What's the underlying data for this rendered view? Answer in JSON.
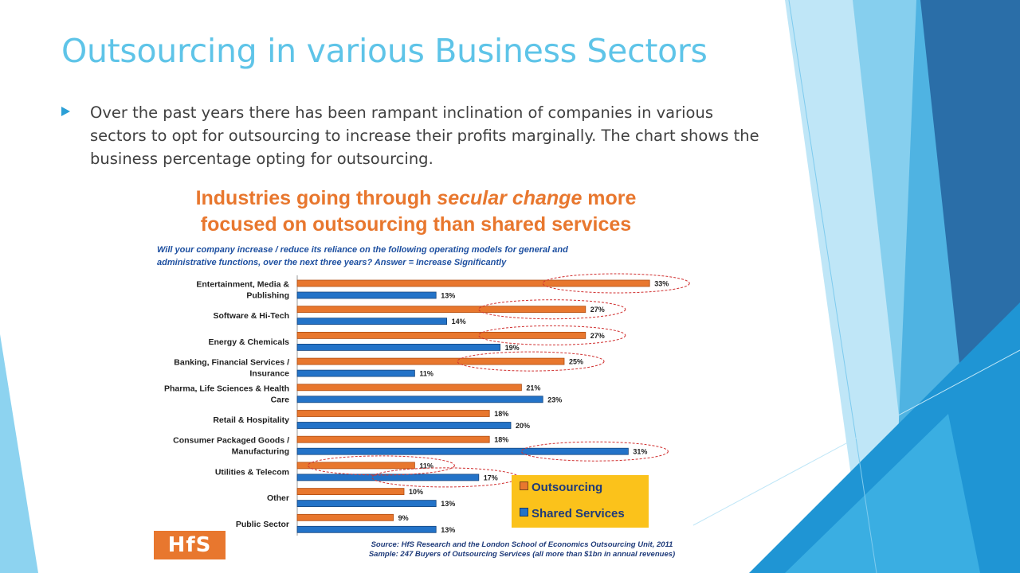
{
  "slide": {
    "title": "Outsourcing in various Business Sectors",
    "bullet": "Over the past years there has been rampant inclination of companies in various sectors to opt for outsourcing to increase their profits marginally. The chart shows the business percentage opting for outsourcing."
  },
  "colors": {
    "accent_light": "#5ec4e8",
    "accent_dark": "#2a6ea8",
    "outsourcing_bar": "#e8772e",
    "shared_services_bar": "#2373c8",
    "legend_background": "#fbc21b"
  },
  "chart_data": {
    "type": "bar",
    "orientation": "horizontal",
    "title_parts": {
      "line1_before": "Industries going through ",
      "line1_emphasis": "secular change",
      "line1_after": " more",
      "line2": "focused on outsourcing than shared services"
    },
    "subtitle": "Will your company increase / reduce its reliance on the following operating models for general and administrative functions, over the next three years? Answer = Increase Significantly",
    "categories": [
      [
        "Entertainment, Media &",
        "Publishing"
      ],
      [
        "Software & Hi-Tech"
      ],
      [
        "Energy & Chemicals"
      ],
      [
        "Banking, Financial Services /",
        "Insurance"
      ],
      [
        "Pharma, Life Sciences & Health",
        "Care"
      ],
      [
        "Retail & Hospitality"
      ],
      [
        "Consumer Packaged Goods /",
        "Manufacturing"
      ],
      [
        "Utilities & Telecom"
      ],
      [
        "Other"
      ],
      [
        "Public Sector"
      ]
    ],
    "series": [
      {
        "name": "Outsourcing",
        "values": [
          33,
          27,
          27,
          25,
          21,
          18,
          18,
          11,
          10,
          9
        ]
      },
      {
        "name": "Shared Services",
        "values": [
          13,
          14,
          19,
          11,
          23,
          20,
          31,
          17,
          13,
          13
        ]
      }
    ],
    "highlighted": [
      {
        "category_index": 0,
        "series": 0
      },
      {
        "category_index": 1,
        "series": 0
      },
      {
        "category_index": 2,
        "series": 0
      },
      {
        "category_index": 3,
        "series": 0
      },
      {
        "category_index": 6,
        "series": 1
      },
      {
        "category_index": 7,
        "series": 0
      },
      {
        "category_index": 7,
        "series": 1
      }
    ],
    "value_suffix": "%",
    "xlim": [
      0,
      35
    ],
    "grid": false,
    "legend_position": "bottom-right",
    "source_lines": [
      "Source:  HfS Research and the London School of Economics Outsourcing Unit, 2011",
      "Sample: 247 Buyers of Outsourcing Services (all more than $1bn in annual revenues)"
    ]
  },
  "logo": {
    "text": "HfS"
  }
}
